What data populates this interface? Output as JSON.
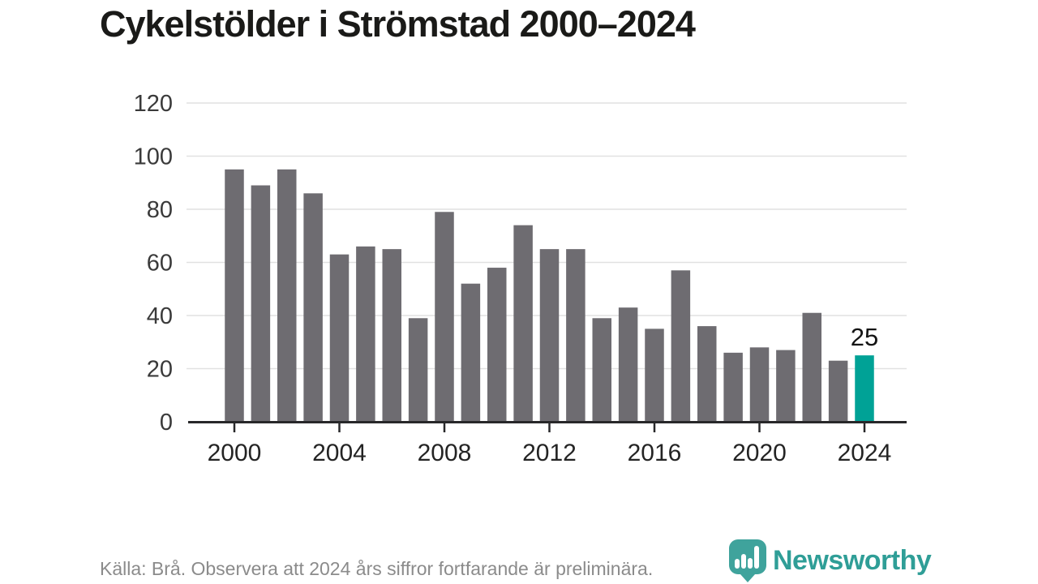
{
  "title": "Cykelstölder i Strömstad 2000–2024",
  "footer": {
    "source_note": "Källa: Brå. Observera att 2024 års siffror fortfarande är preliminära.",
    "brand": "Newsworthy"
  },
  "colors": {
    "bar": "#6e6c71",
    "highlight": "#00a296",
    "grid": "#e1e1e1",
    "axis": "#28282a",
    "ytick_label": "#3a3a3a",
    "xtick_label": "#242424",
    "annotation": "#141414",
    "brand_teal": "#2f9e97",
    "logo_teal": "#3fa39c"
  },
  "chart_data": {
    "type": "bar",
    "title": "Cykelstölder i Strömstad 2000–2024",
    "categories": [
      2000,
      2001,
      2002,
      2003,
      2004,
      2005,
      2006,
      2007,
      2008,
      2009,
      2010,
      2011,
      2012,
      2013,
      2014,
      2015,
      2016,
      2017,
      2018,
      2019,
      2020,
      2021,
      2022,
      2023,
      2024
    ],
    "values": [
      95,
      89,
      95,
      86,
      63,
      66,
      65,
      39,
      79,
      52,
      58,
      74,
      65,
      65,
      39,
      43,
      35,
      57,
      36,
      26,
      28,
      27,
      41,
      23,
      25
    ],
    "highlight_index": 24,
    "annotation": {
      "index": 24,
      "label": "25"
    },
    "xlabel": "",
    "ylabel": "",
    "ylim": [
      0,
      120
    ],
    "ytick_step": 20,
    "yticks": [
      0,
      20,
      40,
      60,
      80,
      100,
      120
    ],
    "xticks": [
      2000,
      2004,
      2008,
      2012,
      2016,
      2020,
      2024
    ],
    "grid": "horizontal",
    "legend": "none"
  }
}
